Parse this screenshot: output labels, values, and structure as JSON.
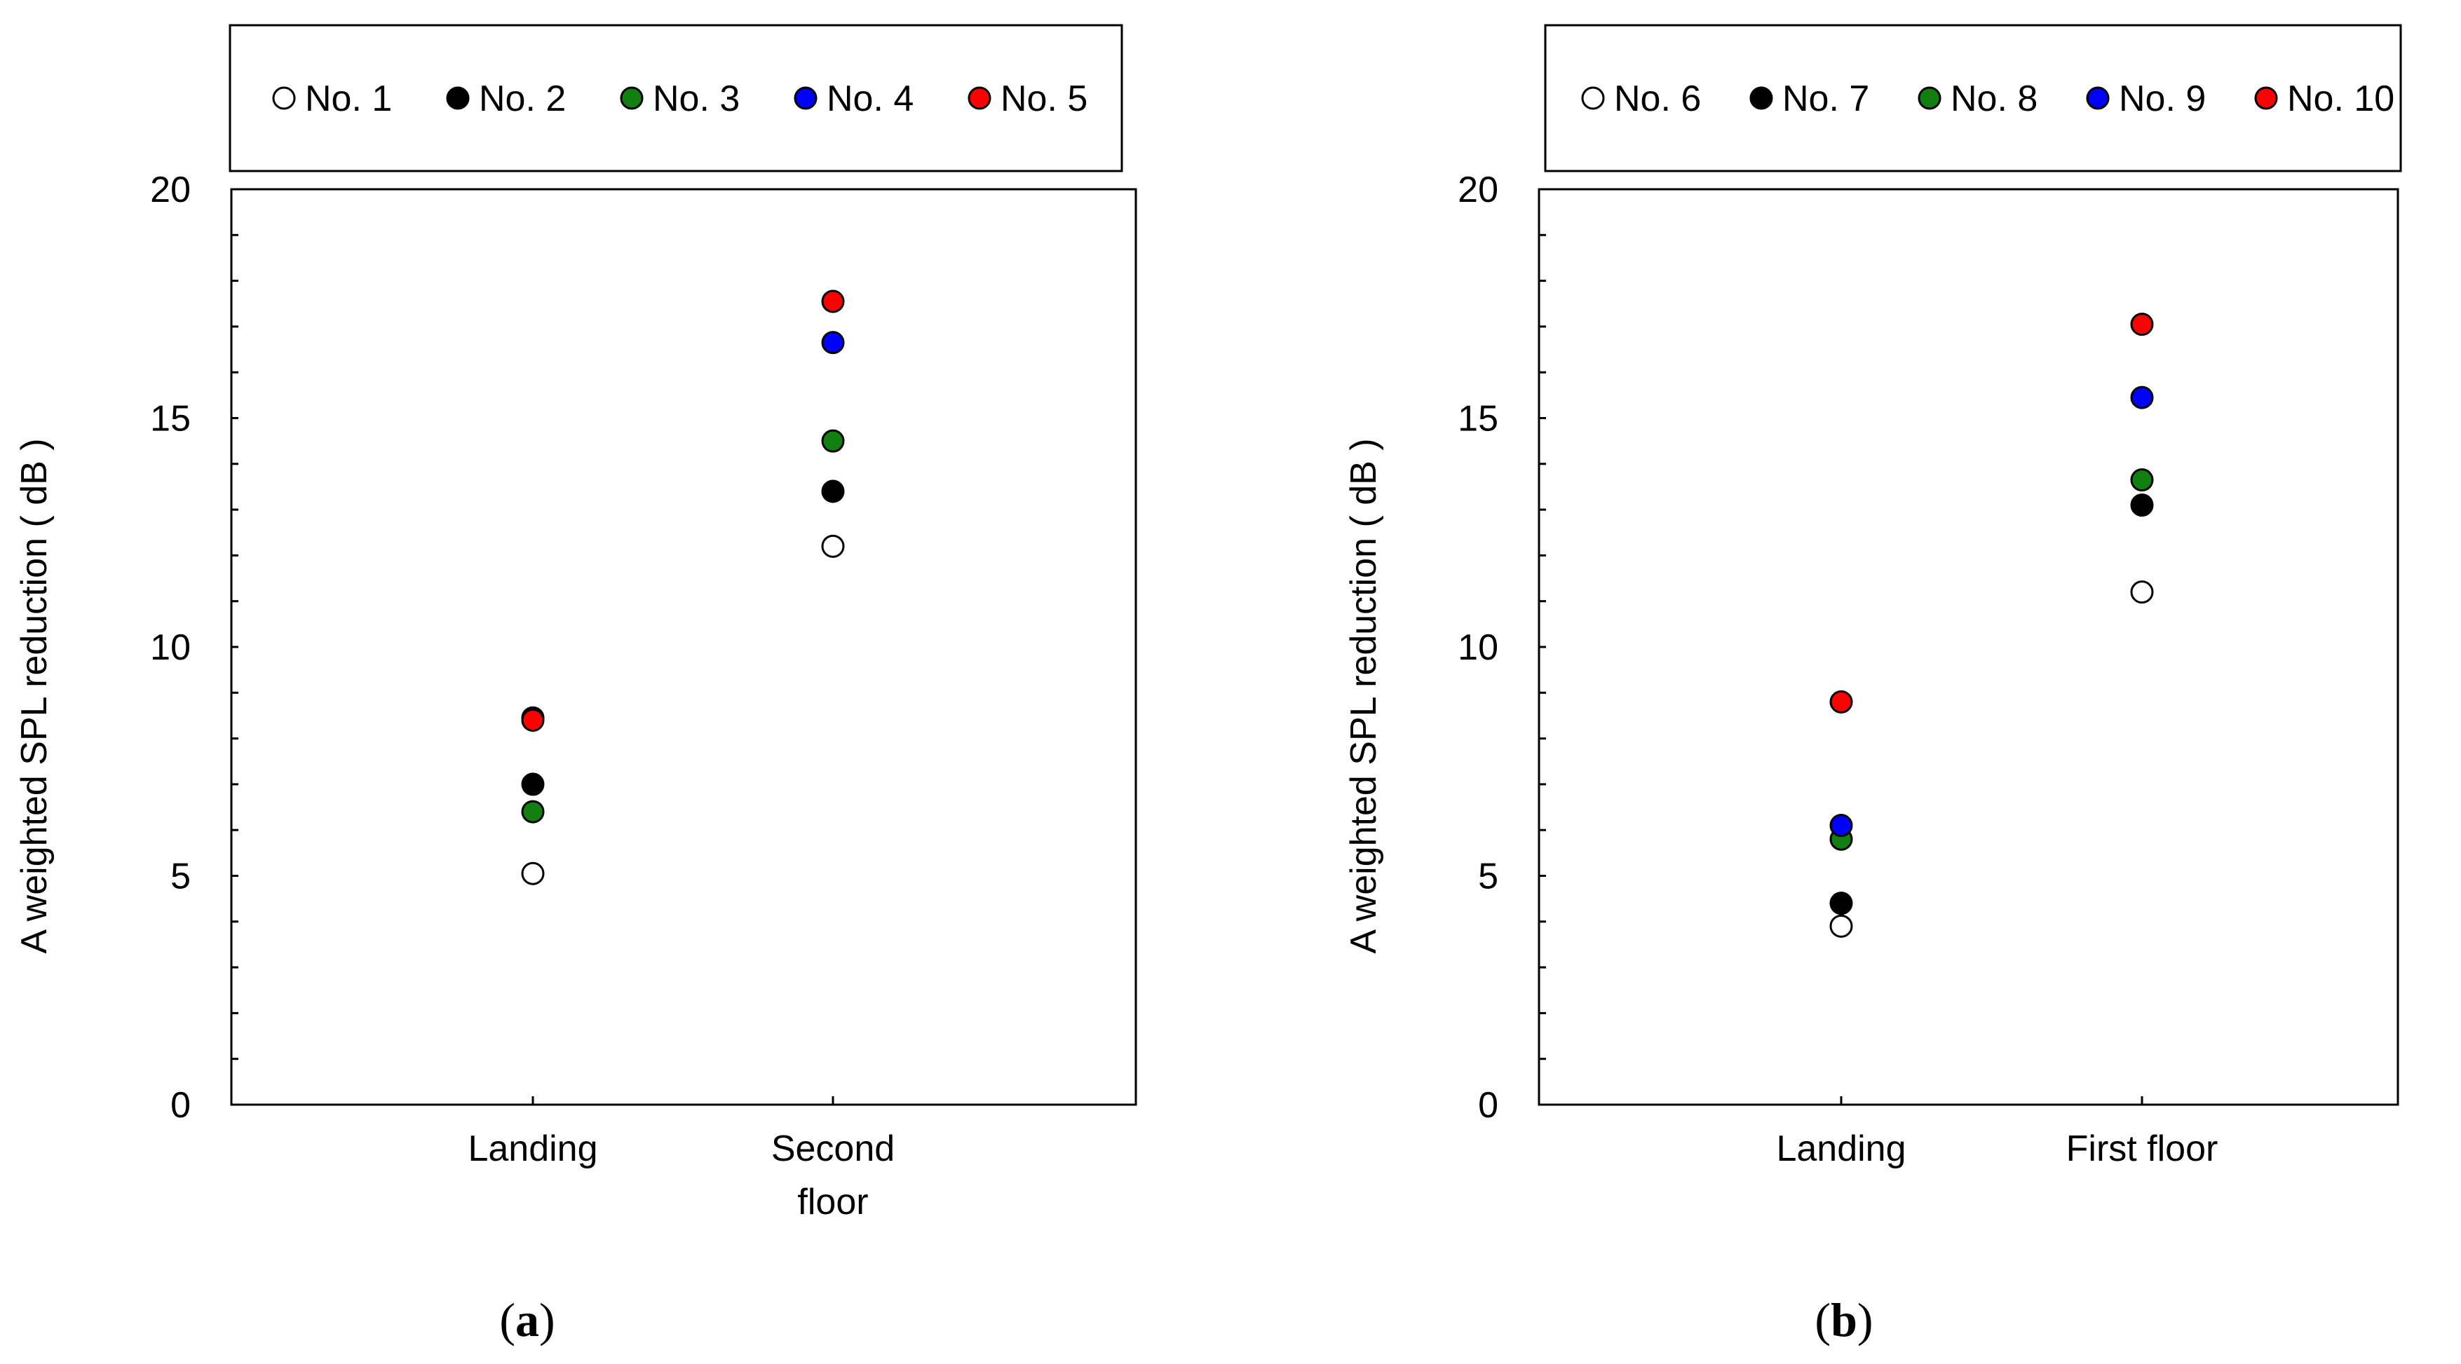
{
  "chart_data": [
    {
      "type": "scatter",
      "panel_label": "a",
      "ylabel": "A weighted SPL reduction ( dB )",
      "ylim": [
        0,
        20
      ],
      "yticks": [
        "0",
        "5",
        "10",
        "15",
        "20"
      ],
      "categories": [
        "Landing",
        "Second\nfloor"
      ],
      "series": [
        {
          "name": "No. 1",
          "color": "#ffffff",
          "values": [
            5.05,
            12.2
          ]
        },
        {
          "name": "No. 2",
          "color": "#000000",
          "values": [
            7.0,
            13.4
          ]
        },
        {
          "name": "No. 3",
          "color": "#118011",
          "values": [
            6.4,
            14.5
          ]
        },
        {
          "name": "No. 4",
          "color": "#0000ff",
          "values": [
            8.45,
            16.65
          ]
        },
        {
          "name": "No. 5",
          "color": "#ff0000",
          "values": [
            8.4,
            17.55
          ]
        }
      ],
      "legend": "top"
    },
    {
      "type": "scatter",
      "panel_label": "b",
      "ylabel": "A weighted SPL reduction ( dB )",
      "ylim": [
        0,
        20
      ],
      "yticks": [
        "0",
        "5",
        "10",
        "15",
        "20"
      ],
      "categories": [
        "Landing",
        "First floor"
      ],
      "series": [
        {
          "name": "No. 6",
          "color": "#ffffff",
          "values": [
            3.9,
            11.2
          ]
        },
        {
          "name": "No. 7",
          "color": "#000000",
          "values": [
            4.4,
            13.1
          ]
        },
        {
          "name": "No. 8",
          "color": "#118011",
          "values": [
            5.8,
            13.65
          ]
        },
        {
          "name": "No. 9",
          "color": "#0000ff",
          "values": [
            6.1,
            15.45
          ]
        },
        {
          "name": "No. 10",
          "color": "#ff0000",
          "values": [
            8.8,
            17.05
          ]
        }
      ],
      "legend": "top"
    }
  ]
}
